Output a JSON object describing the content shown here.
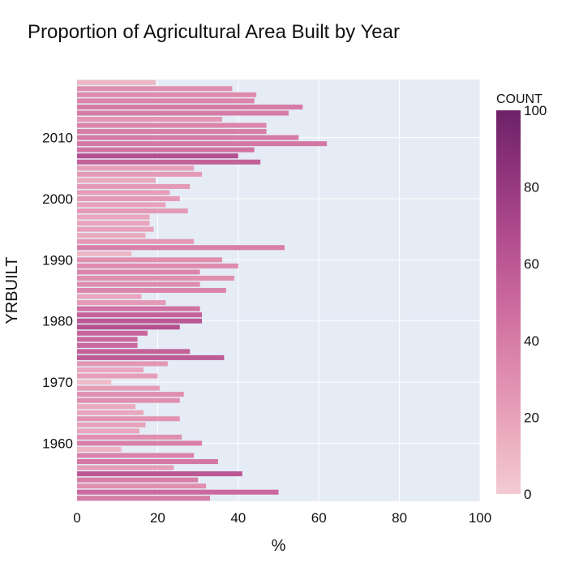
{
  "chart_data": {
    "type": "bar",
    "orientation": "horizontal",
    "title": "Proportion of Agricultural Area Built by Year",
    "xlabel": "%",
    "ylabel": "YRBUILT",
    "xlim": [
      0,
      100
    ],
    "ylim": [
      1950.5,
      2019.5
    ],
    "x_ticks": [
      0,
      20,
      40,
      60,
      80,
      100
    ],
    "y_ticks": [
      1960,
      1970,
      1980,
      1990,
      2000,
      2010
    ],
    "grid": true,
    "colorbar": {
      "title": "COUNT",
      "range": [
        0,
        100
      ],
      "ticks": [
        0,
        20,
        40,
        60,
        80,
        100
      ],
      "colors": [
        "#f3cbd3",
        "#eaa9bd",
        "#dd88ac",
        "#ca699d",
        "#b14d8e",
        "#91357d",
        "#6c2167"
      ]
    },
    "years": [
      1951,
      1952,
      1953,
      1954,
      1955,
      1956,
      1957,
      1958,
      1959,
      1960,
      1961,
      1962,
      1963,
      1964,
      1965,
      1966,
      1967,
      1968,
      1969,
      1970,
      1971,
      1972,
      1973,
      1974,
      1975,
      1976,
      1977,
      1978,
      1979,
      1980,
      1981,
      1982,
      1983,
      1984,
      1985,
      1986,
      1987,
      1988,
      1989,
      1990,
      1991,
      1992,
      1993,
      1994,
      1995,
      1996,
      1997,
      1998,
      1999,
      2000,
      2001,
      2002,
      2003,
      2004,
      2005,
      2006,
      2007,
      2008,
      2009,
      2010,
      2011,
      2012,
      2013,
      2014,
      2015,
      2016,
      2017,
      2018,
      2019
    ],
    "values": [
      33,
      50,
      32,
      30,
      41,
      24,
      35,
      29,
      11,
      31,
      26,
      15.5,
      17,
      25.5,
      16.5,
      14.5,
      25.5,
      26.5,
      20.5,
      8.5,
      20,
      16.5,
      22.5,
      36.5,
      28,
      15,
      15,
      17.5,
      25.5,
      31,
      31,
      30.5,
      22,
      16,
      37,
      30.5,
      39,
      30.5,
      40,
      36,
      13.5,
      51.5,
      29,
      17,
      19,
      18,
      18,
      27.5,
      22,
      25.5,
      23,
      28,
      19.5,
      31,
      29,
      45.5,
      40,
      44,
      62,
      55,
      47,
      47,
      36,
      52.5,
      56,
      44,
      44.5,
      38.5,
      19.5
    ],
    "counts": [
      40,
      50,
      30,
      38,
      60,
      22,
      42,
      36,
      12,
      38,
      30,
      18,
      20,
      28,
      18,
      16,
      30,
      30,
      22,
      8,
      22,
      18,
      26,
      58,
      55,
      50,
      50,
      52,
      65,
      60,
      55,
      45,
      24,
      18,
      35,
      32,
      30,
      35,
      32,
      30,
      10,
      38,
      26,
      16,
      20,
      18,
      18,
      24,
      20,
      24,
      22,
      24,
      16,
      24,
      22,
      55,
      65,
      45,
      42,
      40,
      38,
      35,
      26,
      40,
      40,
      35,
      32,
      30,
      10
    ]
  }
}
